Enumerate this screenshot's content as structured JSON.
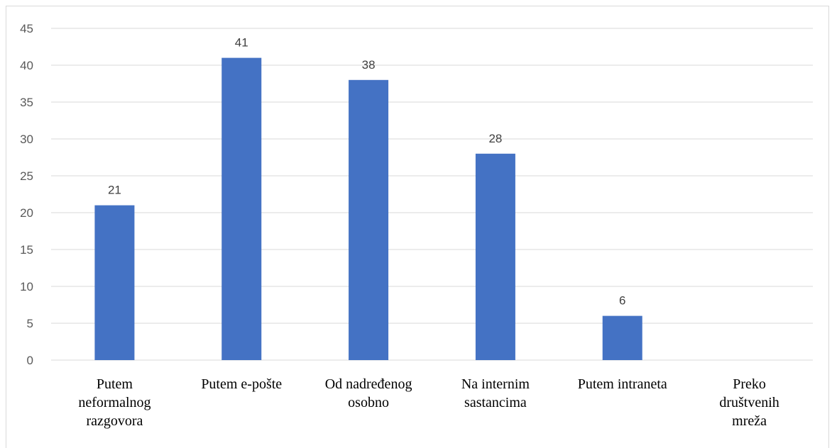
{
  "chart_data": {
    "type": "bar",
    "categories": [
      "Putem neformalnog razgovora",
      "Putem e-pošte",
      "Od nadređenog osobno",
      "Na internim sastancima",
      "Putem intraneta",
      "Preko društvenih mreža"
    ],
    "category_lines": [
      [
        "Putem",
        "neformalnog",
        "razgovora"
      ],
      [
        "Putem e-pošte"
      ],
      [
        "Od nadređenog",
        "osobno"
      ],
      [
        "Na internim",
        "sastancima"
      ],
      [
        "Putem intraneta"
      ],
      [
        "Preko",
        "društvenih",
        "mreža"
      ]
    ],
    "values": [
      21,
      41,
      38,
      28,
      6,
      null
    ],
    "data_labels": [
      "21",
      "41",
      "38",
      "28",
      "6",
      ""
    ],
    "ylim": [
      0,
      45
    ],
    "yticks": [
      0,
      5,
      10,
      15,
      20,
      25,
      30,
      35,
      40,
      45
    ],
    "grid": true,
    "title": "",
    "xlabel": "",
    "ylabel": "",
    "colors": {
      "bar": "#4472C4",
      "grid": "#d9d9d9"
    }
  }
}
